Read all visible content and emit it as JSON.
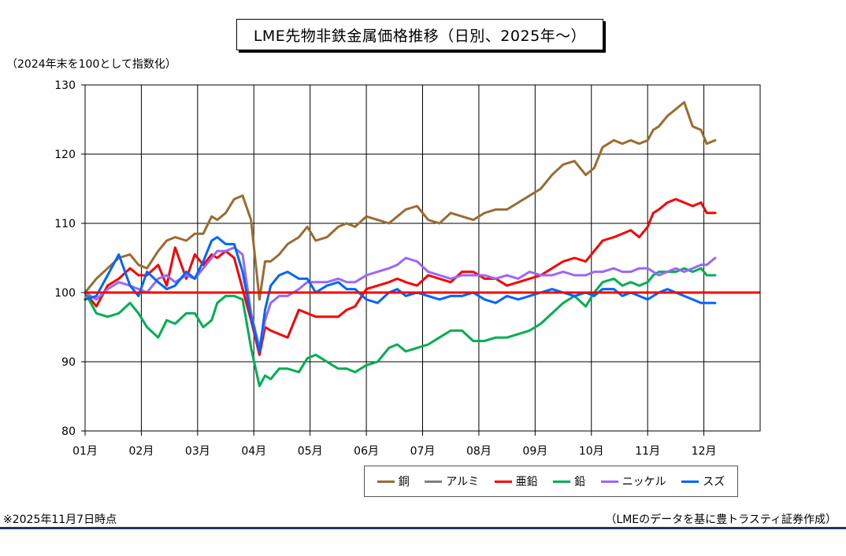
{
  "title": "LME先物非鉄金属価格推移（日別、2025年～）",
  "y_unit_note": "（2024年末を100として指数化）",
  "footnote_date": "※2025年11月7日時点",
  "footnote_source": "（LMEのデータを基に豊トラスティ証券作成）",
  "chart_data": {
    "type": "line",
    "title": "LME先物非鉄金属価格推移（日別、2025年～）",
    "xlabel": "",
    "ylabel": "（2024年末を100として指数化）",
    "ylim": [
      80,
      130
    ],
    "yticks": [
      80,
      90,
      100,
      110,
      120,
      130
    ],
    "xlim": [
      0,
      12
    ],
    "xticks": [
      "01月",
      "02月",
      "03月",
      "04月",
      "05月",
      "06月",
      "07月",
      "08月",
      "09月",
      "10月",
      "11月",
      "12月"
    ],
    "grid": true,
    "legend_position": "bottom",
    "reference_line": {
      "value": 100,
      "color": "#ff0000"
    },
    "series": [
      {
        "name": "銅",
        "color": "#9c6b30",
        "x": [
          0,
          0.2,
          0.4,
          0.6,
          0.8,
          0.95,
          1.1,
          1.3,
          1.45,
          1.6,
          1.8,
          1.95,
          2.1,
          2.25,
          2.35,
          2.5,
          2.65,
          2.8,
          2.95,
          3.1,
          3.2,
          3.3,
          3.45,
          3.6,
          3.8,
          3.95,
          4.1,
          4.3,
          4.5,
          4.65,
          4.8,
          5.0,
          5.2,
          5.4,
          5.55,
          5.7,
          5.9,
          6.1,
          6.3,
          6.5,
          6.7,
          6.9,
          7.1,
          7.3,
          7.5,
          7.7,
          7.9,
          8.1,
          8.3,
          8.5,
          8.7,
          8.9,
          9.05,
          9.2,
          9.4,
          9.55,
          9.7,
          9.85,
          10.0,
          10.1,
          10.2,
          10.35,
          10.5,
          10.65,
          10.8,
          10.95,
          11.05,
          11.2
        ],
        "y": [
          100.0,
          102.0,
          103.5,
          105.0,
          105.5,
          104.0,
          103.5,
          106.0,
          107.5,
          108.0,
          107.5,
          108.5,
          108.5,
          111.0,
          110.5,
          111.5,
          113.5,
          114.0,
          110.5,
          99.0,
          104.5,
          104.5,
          105.5,
          107.0,
          108.0,
          109.5,
          107.5,
          108.0,
          109.5,
          110.0,
          109.5,
          111.0,
          110.5,
          110.0,
          111.0,
          112.0,
          112.5,
          110.5,
          110.0,
          111.5,
          111.0,
          110.5,
          111.5,
          112.0,
          112.0,
          113.0,
          114.0,
          115.0,
          117.0,
          118.5,
          119.0,
          117.0,
          118.0,
          121.0,
          122.0,
          121.5,
          122.0,
          121.5,
          122.0,
          123.5,
          124.0,
          125.5,
          126.5,
          127.5,
          124.0,
          123.5,
          121.5,
          122.0
        ]
      },
      {
        "name": "アルミ",
        "color": "#808080",
        "x": [],
        "y": []
      },
      {
        "name": "亜鉛",
        "color": "#ff0000",
        "x": [
          0,
          0.2,
          0.4,
          0.6,
          0.8,
          0.95,
          1.1,
          1.3,
          1.45,
          1.6,
          1.8,
          1.95,
          2.1,
          2.25,
          2.35,
          2.5,
          2.65,
          2.8,
          2.95,
          3.1,
          3.2,
          3.3,
          3.45,
          3.6,
          3.8,
          3.95,
          4.1,
          4.3,
          4.5,
          4.65,
          4.8,
          5.0,
          5.2,
          5.4,
          5.55,
          5.7,
          5.9,
          6.1,
          6.3,
          6.5,
          6.7,
          6.9,
          7.1,
          7.3,
          7.5,
          7.7,
          7.9,
          8.1,
          8.3,
          8.5,
          8.7,
          8.9,
          9.05,
          9.2,
          9.4,
          9.55,
          9.7,
          9.85,
          10.0,
          10.1,
          10.2,
          10.35,
          10.5,
          10.65,
          10.8,
          10.95,
          11.05,
          11.2
        ],
        "y": [
          100.0,
          98.0,
          101.0,
          102.0,
          103.5,
          102.5,
          102.5,
          104.0,
          101.0,
          106.5,
          102.0,
          105.5,
          104.0,
          105.5,
          105.0,
          106.0,
          105.0,
          100.5,
          96.0,
          91.0,
          95.0,
          94.5,
          94.0,
          93.5,
          97.5,
          97.0,
          96.5,
          96.5,
          96.5,
          97.5,
          98.0,
          100.5,
          101.0,
          101.5,
          102.0,
          101.5,
          101.0,
          102.5,
          102.0,
          101.5,
          103.0,
          103.0,
          102.0,
          102.0,
          101.0,
          101.5,
          102.0,
          102.5,
          103.5,
          104.5,
          105.0,
          104.5,
          106.0,
          107.5,
          108.0,
          108.5,
          109.0,
          108.0,
          109.5,
          111.5,
          112.0,
          113.0,
          113.5,
          113.0,
          112.5,
          113.0,
          111.5,
          111.5
        ]
      },
      {
        "name": "鉛",
        "color": "#00b050",
        "x": [
          0,
          0.2,
          0.4,
          0.6,
          0.8,
          0.95,
          1.1,
          1.3,
          1.45,
          1.6,
          1.8,
          1.95,
          2.1,
          2.25,
          2.35,
          2.5,
          2.65,
          2.8,
          2.95,
          3.1,
          3.2,
          3.3,
          3.45,
          3.6,
          3.8,
          3.95,
          4.1,
          4.3,
          4.5,
          4.65,
          4.8,
          5.0,
          5.2,
          5.4,
          5.55,
          5.7,
          5.9,
          6.1,
          6.3,
          6.5,
          6.7,
          6.9,
          7.1,
          7.3,
          7.5,
          7.7,
          7.9,
          8.1,
          8.3,
          8.5,
          8.7,
          8.9,
          9.05,
          9.2,
          9.4,
          9.55,
          9.7,
          9.85,
          10.0,
          10.1,
          10.2,
          10.35,
          10.5,
          10.65,
          10.8,
          10.95,
          11.05,
          11.2
        ],
        "y": [
          100.0,
          97.0,
          96.5,
          97.0,
          98.5,
          97.0,
          95.0,
          93.5,
          96.0,
          95.5,
          97.0,
          97.0,
          95.0,
          96.0,
          98.5,
          99.5,
          99.5,
          99.0,
          92.0,
          86.5,
          88.0,
          87.5,
          89.0,
          89.0,
          88.5,
          90.5,
          91.0,
          90.0,
          89.0,
          89.0,
          88.5,
          89.5,
          90.0,
          92.0,
          92.5,
          91.5,
          92.0,
          92.5,
          93.5,
          94.5,
          94.5,
          93.0,
          93.0,
          93.5,
          93.5,
          94.0,
          94.5,
          95.5,
          97.0,
          98.5,
          99.5,
          98.0,
          100.0,
          101.5,
          102.0,
          101.0,
          101.5,
          101.0,
          101.5,
          102.5,
          103.0,
          103.0,
          103.0,
          103.5,
          103.0,
          103.5,
          102.5,
          102.5
        ]
      },
      {
        "name": "ニッケル",
        "color": "#9966ff",
        "x": [
          0,
          0.2,
          0.4,
          0.6,
          0.8,
          0.95,
          1.1,
          1.3,
          1.45,
          1.6,
          1.8,
          1.95,
          2.1,
          2.25,
          2.35,
          2.5,
          2.65,
          2.8,
          2.95,
          3.1,
          3.2,
          3.3,
          3.45,
          3.6,
          3.8,
          3.95,
          4.1,
          4.3,
          4.5,
          4.65,
          4.8,
          5.0,
          5.2,
          5.4,
          5.55,
          5.7,
          5.9,
          6.1,
          6.3,
          6.5,
          6.7,
          6.9,
          7.1,
          7.3,
          7.5,
          7.7,
          7.9,
          8.1,
          8.3,
          8.5,
          8.7,
          8.9,
          9.05,
          9.2,
          9.4,
          9.55,
          9.7,
          9.85,
          10.0,
          10.1,
          10.2,
          10.35,
          10.5,
          10.65,
          10.8,
          10.95,
          11.05,
          11.2
        ],
        "y": [
          100.0,
          99.0,
          100.5,
          101.5,
          101.0,
          100.5,
          100.0,
          102.0,
          102.5,
          101.5,
          102.5,
          102.0,
          103.5,
          105.0,
          106.0,
          106.0,
          106.5,
          105.5,
          97.0,
          92.0,
          96.0,
          98.5,
          99.5,
          99.5,
          100.5,
          101.5,
          101.5,
          101.5,
          102.0,
          101.5,
          101.5,
          102.5,
          103.0,
          103.5,
          104.0,
          105.0,
          104.5,
          103.0,
          102.5,
          102.0,
          102.5,
          102.5,
          102.5,
          102.0,
          102.5,
          102.0,
          103.0,
          102.5,
          102.5,
          103.0,
          102.5,
          102.5,
          103.0,
          103.0,
          103.5,
          103.0,
          103.0,
          103.5,
          103.5,
          103.0,
          102.5,
          103.0,
          103.5,
          103.0,
          103.5,
          104.0,
          104.0,
          105.0
        ]
      },
      {
        "name": "スズ",
        "color": "#0066ff",
        "x": [
          0,
          0.2,
          0.4,
          0.6,
          0.8,
          0.95,
          1.1,
          1.3,
          1.45,
          1.6,
          1.8,
          1.95,
          2.1,
          2.25,
          2.35,
          2.5,
          2.65,
          2.8,
          2.95,
          3.1,
          3.2,
          3.3,
          3.45,
          3.6,
          3.8,
          3.95,
          4.1,
          4.3,
          4.5,
          4.65,
          4.8,
          5.0,
          5.2,
          5.4,
          5.55,
          5.7,
          5.9,
          6.1,
          6.3,
          6.5,
          6.7,
          6.9,
          7.1,
          7.3,
          7.5,
          7.7,
          7.9,
          8.1,
          8.3,
          8.5,
          8.7,
          8.9,
          9.05,
          9.2,
          9.4,
          9.55,
          9.7,
          9.85,
          10.0,
          10.1,
          10.2,
          10.35,
          10.5,
          10.65,
          10.8,
          10.95,
          11.05,
          11.2
        ],
        "y": [
          99.0,
          99.5,
          102.5,
          105.5,
          101.0,
          99.5,
          103.0,
          101.5,
          100.5,
          101.0,
          103.0,
          102.0,
          104.5,
          107.5,
          108.0,
          107.0,
          107.0,
          103.0,
          96.5,
          91.5,
          97.5,
          101.0,
          102.5,
          103.0,
          102.0,
          102.0,
          100.0,
          101.0,
          101.5,
          100.5,
          100.5,
          99.0,
          98.5,
          100.0,
          100.5,
          99.5,
          100.0,
          99.5,
          99.0,
          99.5,
          99.5,
          100.0,
          99.0,
          98.5,
          99.5,
          99.0,
          99.5,
          100.0,
          100.5,
          100.0,
          99.5,
          100.0,
          99.5,
          100.5,
          100.5,
          99.5,
          100.0,
          99.5,
          99.0,
          99.5,
          100.0,
          100.5,
          100.0,
          99.5,
          99.0,
          98.5,
          98.5,
          98.5
        ]
      }
    ]
  }
}
